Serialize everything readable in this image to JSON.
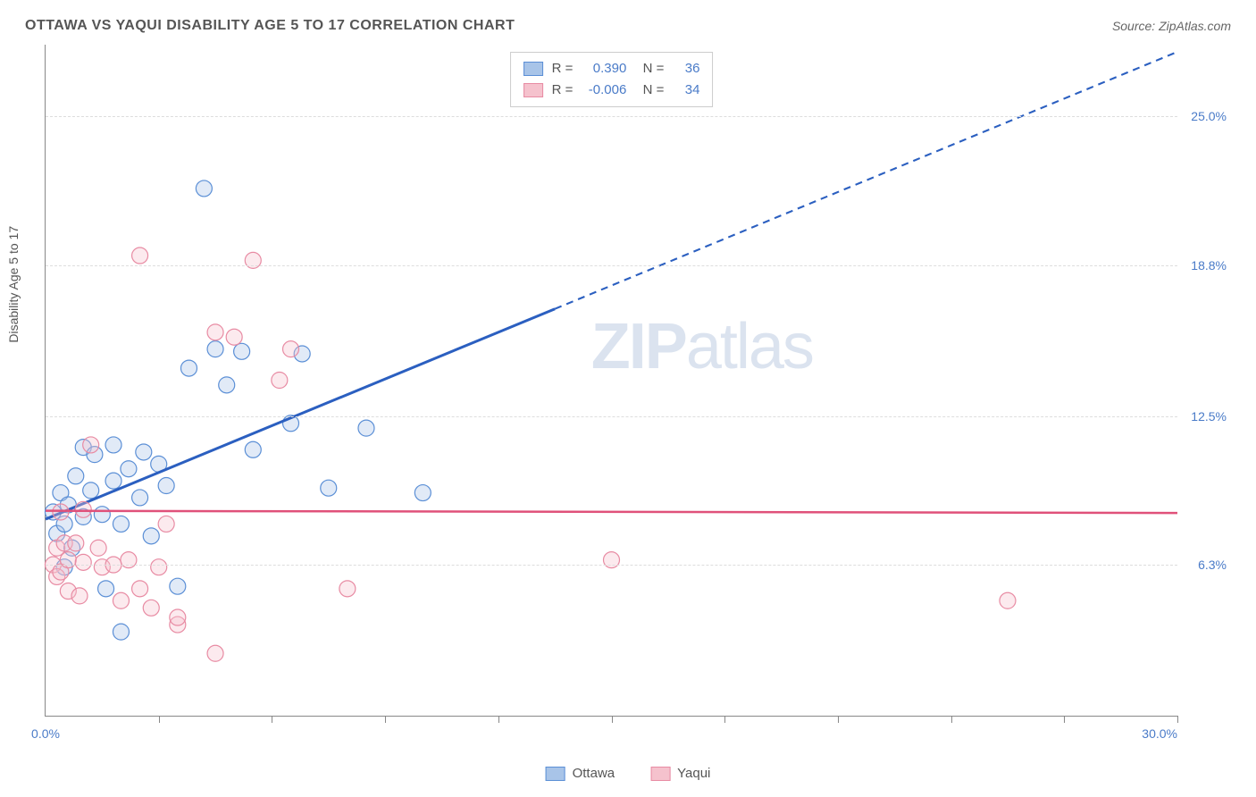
{
  "header": {
    "title": "OTTAWA VS YAQUI DISABILITY AGE 5 TO 17 CORRELATION CHART",
    "source_prefix": "Source: ",
    "source": "ZipAtlas.com"
  },
  "watermark": {
    "zip": "ZIP",
    "atlas": "atlas"
  },
  "chart": {
    "type": "scatter",
    "y_label": "Disability Age 5 to 17",
    "xlim": [
      0,
      30
    ],
    "ylim": [
      0,
      28
    ],
    "x_ticks_minor": [
      3,
      6,
      9,
      12,
      15,
      18,
      21,
      24,
      27,
      30
    ],
    "x_tick_labels": [
      {
        "pos": 0,
        "label": "0.0%"
      },
      {
        "pos": 30,
        "label": "30.0%"
      }
    ],
    "y_gridlines": [
      6.3,
      12.5,
      18.8,
      25.0
    ],
    "y_tick_labels": [
      {
        "pos": 6.3,
        "label": "6.3%"
      },
      {
        "pos": 12.5,
        "label": "12.5%"
      },
      {
        "pos": 18.8,
        "label": "18.8%"
      },
      {
        "pos": 25.0,
        "label": "25.0%"
      }
    ],
    "background_color": "#ffffff",
    "grid_color": "#dddddd",
    "axis_color": "#888888",
    "marker_radius": 9,
    "marker_stroke_width": 1.2,
    "marker_fill_opacity": 0.35,
    "series": [
      {
        "name": "Ottawa",
        "color_fill": "#a8c4e8",
        "color_stroke": "#5b8fd6",
        "r_label": "R =",
        "r_value": "0.390",
        "n_label": "N =",
        "n_value": "36",
        "trendline": {
          "color": "#2b5fc0",
          "width": 3,
          "solid_end_x": 13.5,
          "dash_end_x": 30,
          "y_at_x0": 8.2,
          "slope": 0.65,
          "dash": "8,6"
        },
        "points": [
          [
            0.2,
            8.5
          ],
          [
            0.3,
            7.6
          ],
          [
            0.4,
            9.3
          ],
          [
            0.5,
            8.0
          ],
          [
            0.5,
            6.2
          ],
          [
            0.6,
            8.8
          ],
          [
            0.7,
            7.0
          ],
          [
            0.8,
            10.0
          ],
          [
            1.0,
            8.3
          ],
          [
            1.0,
            11.2
          ],
          [
            1.2,
            9.4
          ],
          [
            1.3,
            10.9
          ],
          [
            1.5,
            8.4
          ],
          [
            1.6,
            5.3
          ],
          [
            1.8,
            9.8
          ],
          [
            1.8,
            11.3
          ],
          [
            2.0,
            3.5
          ],
          [
            2.0,
            8.0
          ],
          [
            2.2,
            10.3
          ],
          [
            2.5,
            9.1
          ],
          [
            2.6,
            11.0
          ],
          [
            2.8,
            7.5
          ],
          [
            3.0,
            10.5
          ],
          [
            3.2,
            9.6
          ],
          [
            3.5,
            5.4
          ],
          [
            3.8,
            14.5
          ],
          [
            4.2,
            22.0
          ],
          [
            4.5,
            15.3
          ],
          [
            4.8,
            13.8
          ],
          [
            5.2,
            15.2
          ],
          [
            5.5,
            11.1
          ],
          [
            6.5,
            12.2
          ],
          [
            6.8,
            15.1
          ],
          [
            7.5,
            9.5
          ],
          [
            8.5,
            12.0
          ],
          [
            10.0,
            9.3
          ]
        ]
      },
      {
        "name": "Yaqui",
        "color_fill": "#f5c2cd",
        "color_stroke": "#e88ba3",
        "r_label": "R =",
        "r_value": "-0.006",
        "n_label": "N =",
        "n_value": "34",
        "trendline": {
          "color": "#e0517a",
          "width": 2.5,
          "solid_end_x": 30,
          "dash_end_x": 30,
          "y_at_x0": 8.55,
          "slope": -0.003,
          "dash": "none"
        },
        "points": [
          [
            0.2,
            6.3
          ],
          [
            0.3,
            7.0
          ],
          [
            0.3,
            5.8
          ],
          [
            0.4,
            6.0
          ],
          [
            0.4,
            8.5
          ],
          [
            0.5,
            7.2
          ],
          [
            0.6,
            6.5
          ],
          [
            0.6,
            5.2
          ],
          [
            0.8,
            7.2
          ],
          [
            0.9,
            5.0
          ],
          [
            1.0,
            6.4
          ],
          [
            1.0,
            8.6
          ],
          [
            1.2,
            11.3
          ],
          [
            1.4,
            7.0
          ],
          [
            1.5,
            6.2
          ],
          [
            1.8,
            6.3
          ],
          [
            2.0,
            4.8
          ],
          [
            2.2,
            6.5
          ],
          [
            2.5,
            5.3
          ],
          [
            2.5,
            19.2
          ],
          [
            2.8,
            4.5
          ],
          [
            3.0,
            6.2
          ],
          [
            3.2,
            8.0
          ],
          [
            3.5,
            3.8
          ],
          [
            3.5,
            4.1
          ],
          [
            4.5,
            16.0
          ],
          [
            4.5,
            2.6
          ],
          [
            5.0,
            15.8
          ],
          [
            5.5,
            19.0
          ],
          [
            6.2,
            14.0
          ],
          [
            6.5,
            15.3
          ],
          [
            8.0,
            5.3
          ],
          [
            15.0,
            6.5
          ],
          [
            25.5,
            4.8
          ]
        ]
      }
    ]
  },
  "bottom_legend": [
    {
      "label": "Ottawa",
      "fill": "#a8c4e8",
      "stroke": "#5b8fd6"
    },
    {
      "label": "Yaqui",
      "fill": "#f5c2cd",
      "stroke": "#e88ba3"
    }
  ]
}
